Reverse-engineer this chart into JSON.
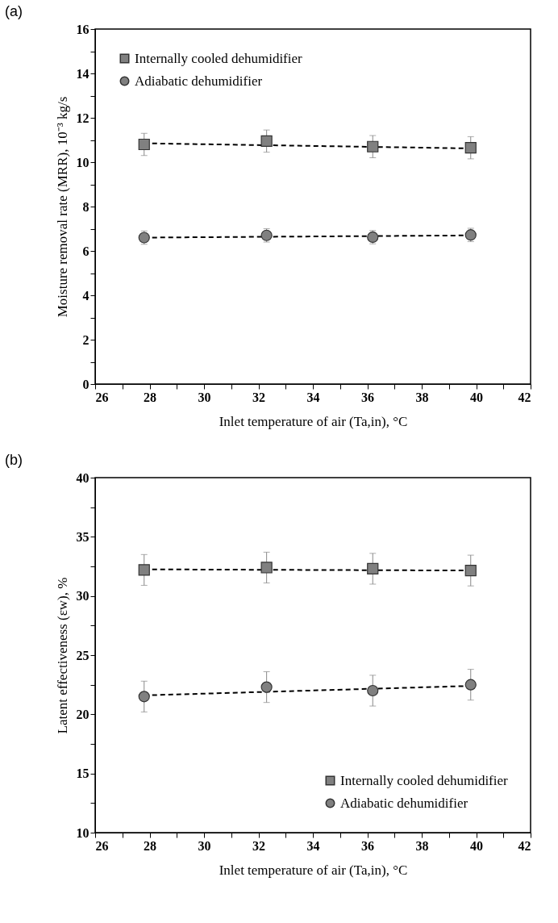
{
  "chart_data": [
    {
      "type": "scatter",
      "title": "(a)",
      "xlabel": "Inlet temperature of air (Ta,in), °C",
      "ylabel": "Moisture removal rate (MRR), 10⁻³ kg/s",
      "xlim": [
        26,
        42
      ],
      "xticks": [
        26,
        {
          "value": 27,
          "label": null
        },
        28,
        {
          "value": 29,
          "label": null
        },
        30,
        {
          "value": 31,
          "label": null
        },
        32,
        {
          "value": 33,
          "label": null
        },
        34,
        {
          "value": 35,
          "label": null
        },
        36,
        {
          "value": 37,
          "label": null
        },
        38,
        {
          "value": 39,
          "label": null
        },
        40,
        {
          "value": 41,
          "label": null
        },
        42
      ],
      "ylim": [
        0,
        16
      ],
      "yticks": [
        0,
        {
          "value": 1,
          "label": null
        },
        2,
        {
          "value": 3,
          "label": null
        },
        4,
        {
          "value": 5,
          "label": null
        },
        6,
        {
          "value": 7,
          "label": null
        },
        8,
        {
          "value": 9,
          "label": null
        },
        10,
        {
          "value": 11,
          "label": null
        },
        12,
        {
          "value": 13,
          "label": null
        },
        14,
        {
          "value": 15,
          "label": null
        },
        16
      ],
      "grid": false,
      "legend": "top left",
      "series": [
        {
          "name": "Internally cooled dehumidifier",
          "marker": "square",
          "color": "#808080",
          "x": [
            27.8,
            32.3,
            36.2,
            39.8
          ],
          "values": [
            10.8,
            10.95,
            10.7,
            10.65
          ],
          "errors": [
            0.5,
            0.5,
            0.5,
            0.5
          ]
        },
        {
          "name": "Adiabatic dehumidifier",
          "marker": "circle",
          "color": "#808080",
          "x": [
            27.8,
            32.3,
            36.2,
            39.8
          ],
          "values": [
            6.6,
            6.7,
            6.62,
            6.72
          ],
          "errors": [
            0.3,
            0.3,
            0.3,
            0.3
          ]
        },
        {
          "type": "line",
          "line_style": "dashed",
          "marker": "none",
          "color": "#000000",
          "x": [
            27.8,
            39.8
          ],
          "values": [
            10.85,
            10.62
          ]
        },
        {
          "type": "line",
          "line_style": "dashed",
          "marker": "none",
          "color": "#000000",
          "x": [
            27.8,
            39.8
          ],
          "values": [
            6.6,
            6.7
          ]
        }
      ]
    },
    {
      "type": "scatter",
      "title": "(b)",
      "xlabel": "Inlet temperature of air (Ta,in), °C",
      "ylabel": "Latent effectiveness (εw), %",
      "xlim": [
        26,
        42
      ],
      "xticks": [
        26,
        {
          "value": 27,
          "label": null
        },
        28,
        {
          "value": 29,
          "label": null
        },
        30,
        {
          "value": 31,
          "label": null
        },
        32,
        {
          "value": 33,
          "label": null
        },
        34,
        {
          "value": 35,
          "label": null
        },
        36,
        {
          "value": 37,
          "label": null
        },
        38,
        {
          "value": 39,
          "label": null
        },
        40,
        {
          "value": 41,
          "label": null
        },
        42
      ],
      "ylim": [
        10,
        40
      ],
      "yticks": [
        10,
        {
          "value": 12.5,
          "label": null
        },
        15,
        {
          "value": 17.5,
          "label": null
        },
        20,
        {
          "value": 22.5,
          "label": null
        },
        25,
        {
          "value": 27.5,
          "label": null
        },
        30,
        {
          "value": 32.5,
          "label": null
        },
        35,
        {
          "value": 37.5,
          "label": null
        },
        40
      ],
      "grid": false,
      "legend": "bottom right",
      "series": [
        {
          "name": "Internally cooled dehumidifier",
          "marker": "square",
          "color": "#808080",
          "x": [
            27.8,
            32.3,
            36.2,
            39.8
          ],
          "values": [
            32.2,
            32.4,
            32.3,
            32.15
          ],
          "errors": [
            1.3,
            1.3,
            1.3,
            1.3
          ]
        },
        {
          "name": "Adiabatic dehumidifier",
          "marker": "circle",
          "color": "#808080",
          "x": [
            27.8,
            32.3,
            36.2,
            39.8
          ],
          "values": [
            21.5,
            22.3,
            22.0,
            22.5
          ],
          "errors": [
            1.3,
            1.3,
            1.3,
            1.3
          ]
        },
        {
          "type": "line",
          "line_style": "dashed",
          "marker": "none",
          "color": "#000000",
          "x": [
            27.8,
            39.8
          ],
          "values": [
            32.25,
            32.15
          ]
        },
        {
          "type": "line",
          "line_style": "dashed",
          "marker": "none",
          "color": "#000000",
          "x": [
            27.8,
            39.8
          ],
          "values": [
            21.6,
            22.4
          ]
        }
      ]
    }
  ]
}
